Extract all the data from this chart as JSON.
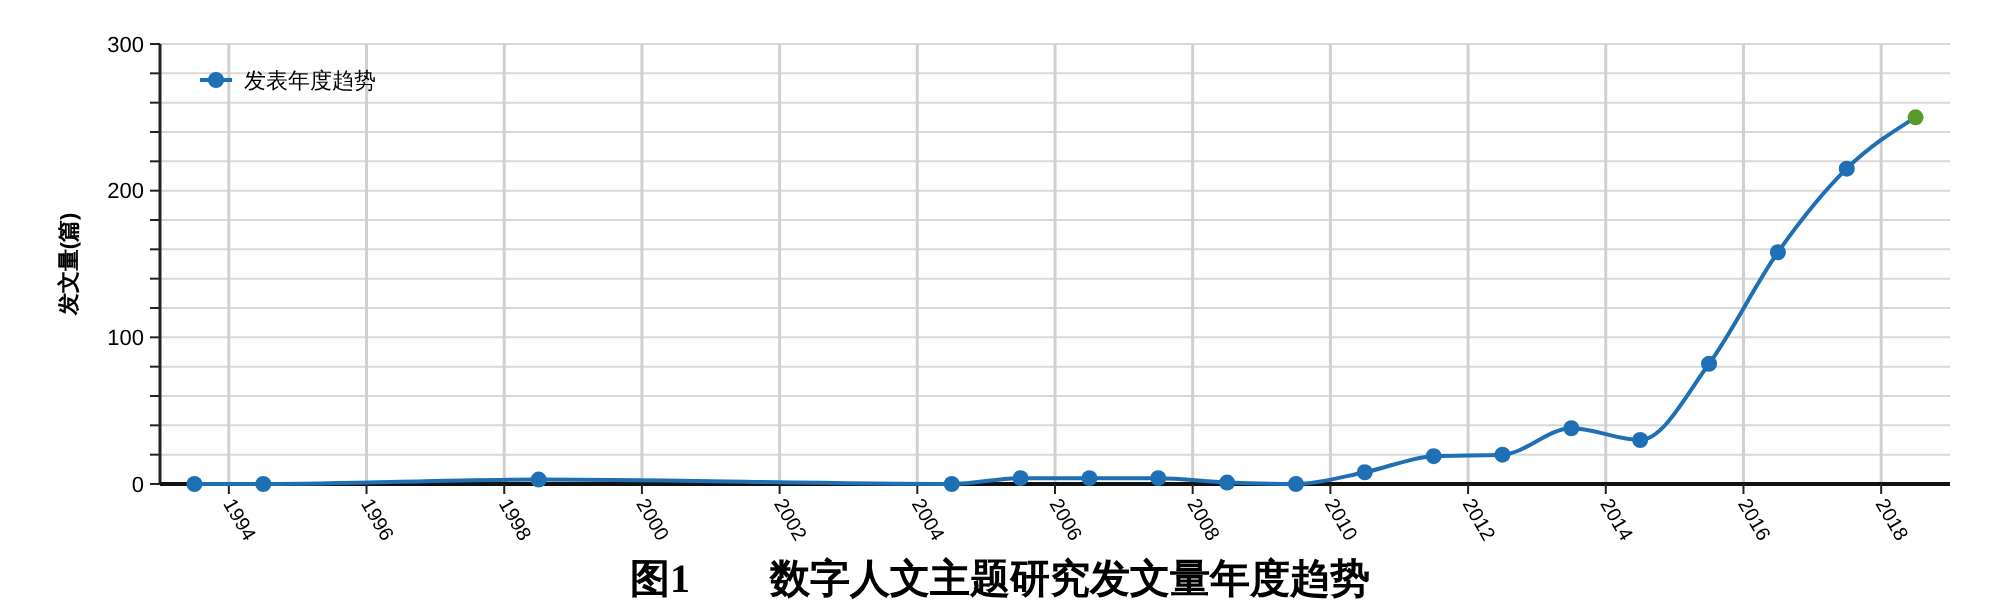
{
  "chart_data": {
    "type": "line",
    "title": "图1　　数字人文主题研究发文量年度趋势",
    "ylabel": "发文量(篇)",
    "xlim": [
      1993,
      2019
    ],
    "xticks": [
      1994,
      1996,
      1998,
      2000,
      2002,
      2004,
      2006,
      2008,
      2010,
      2012,
      2014,
      2016,
      2018
    ],
    "ylim": [
      0,
      300
    ],
    "yticks": [
      0,
      {
        "value": 20,
        "label": null
      },
      {
        "value": 40,
        "label": null
      },
      {
        "value": 60,
        "label": null
      },
      {
        "value": 80,
        "label": null
      },
      100,
      {
        "value": 120,
        "label": null
      },
      {
        "value": 140,
        "label": null
      },
      {
        "value": 160,
        "label": null
      },
      {
        "value": 180,
        "label": null
      },
      200,
      {
        "value": 220,
        "label": null
      },
      {
        "value": 240,
        "label": null
      },
      {
        "value": 260,
        "label": null
      },
      {
        "value": 280,
        "label": null
      },
      300
    ],
    "grid": true,
    "legend": "top left",
    "marker": "circle",
    "series": [
      {
        "name": "发表年度趋势",
        "color": "#1f6fb4",
        "x": [
          1993.5,
          1994.5,
          1998.5,
          2004.5,
          2005.5,
          2006.5,
          2007.5,
          2008.5,
          2009.5,
          2010.5,
          2011.5,
          2012.5,
          2013.5,
          2014.5,
          2015.5,
          2016.5,
          2017.5,
          2018.5
        ],
        "values": [
          0,
          0,
          3,
          0,
          4,
          4,
          4,
          1,
          0,
          8,
          19,
          20,
          38,
          30,
          82,
          158,
          215,
          250
        ],
        "colors": [
          "#1f6fb4",
          "#1f6fb4",
          "#1f6fb4",
          "#1f6fb4",
          "#1f6fb4",
          "#1f6fb4",
          "#1f6fb4",
          "#1f6fb4",
          "#1f6fb4",
          "#1f6fb4",
          "#1f6fb4",
          "#1f6fb4",
          "#1f6fb4",
          "#1f6fb4",
          "#1f6fb4",
          "#1f6fb4",
          "#1f6fb4",
          "#5a9a2a"
        ]
      }
    ]
  }
}
